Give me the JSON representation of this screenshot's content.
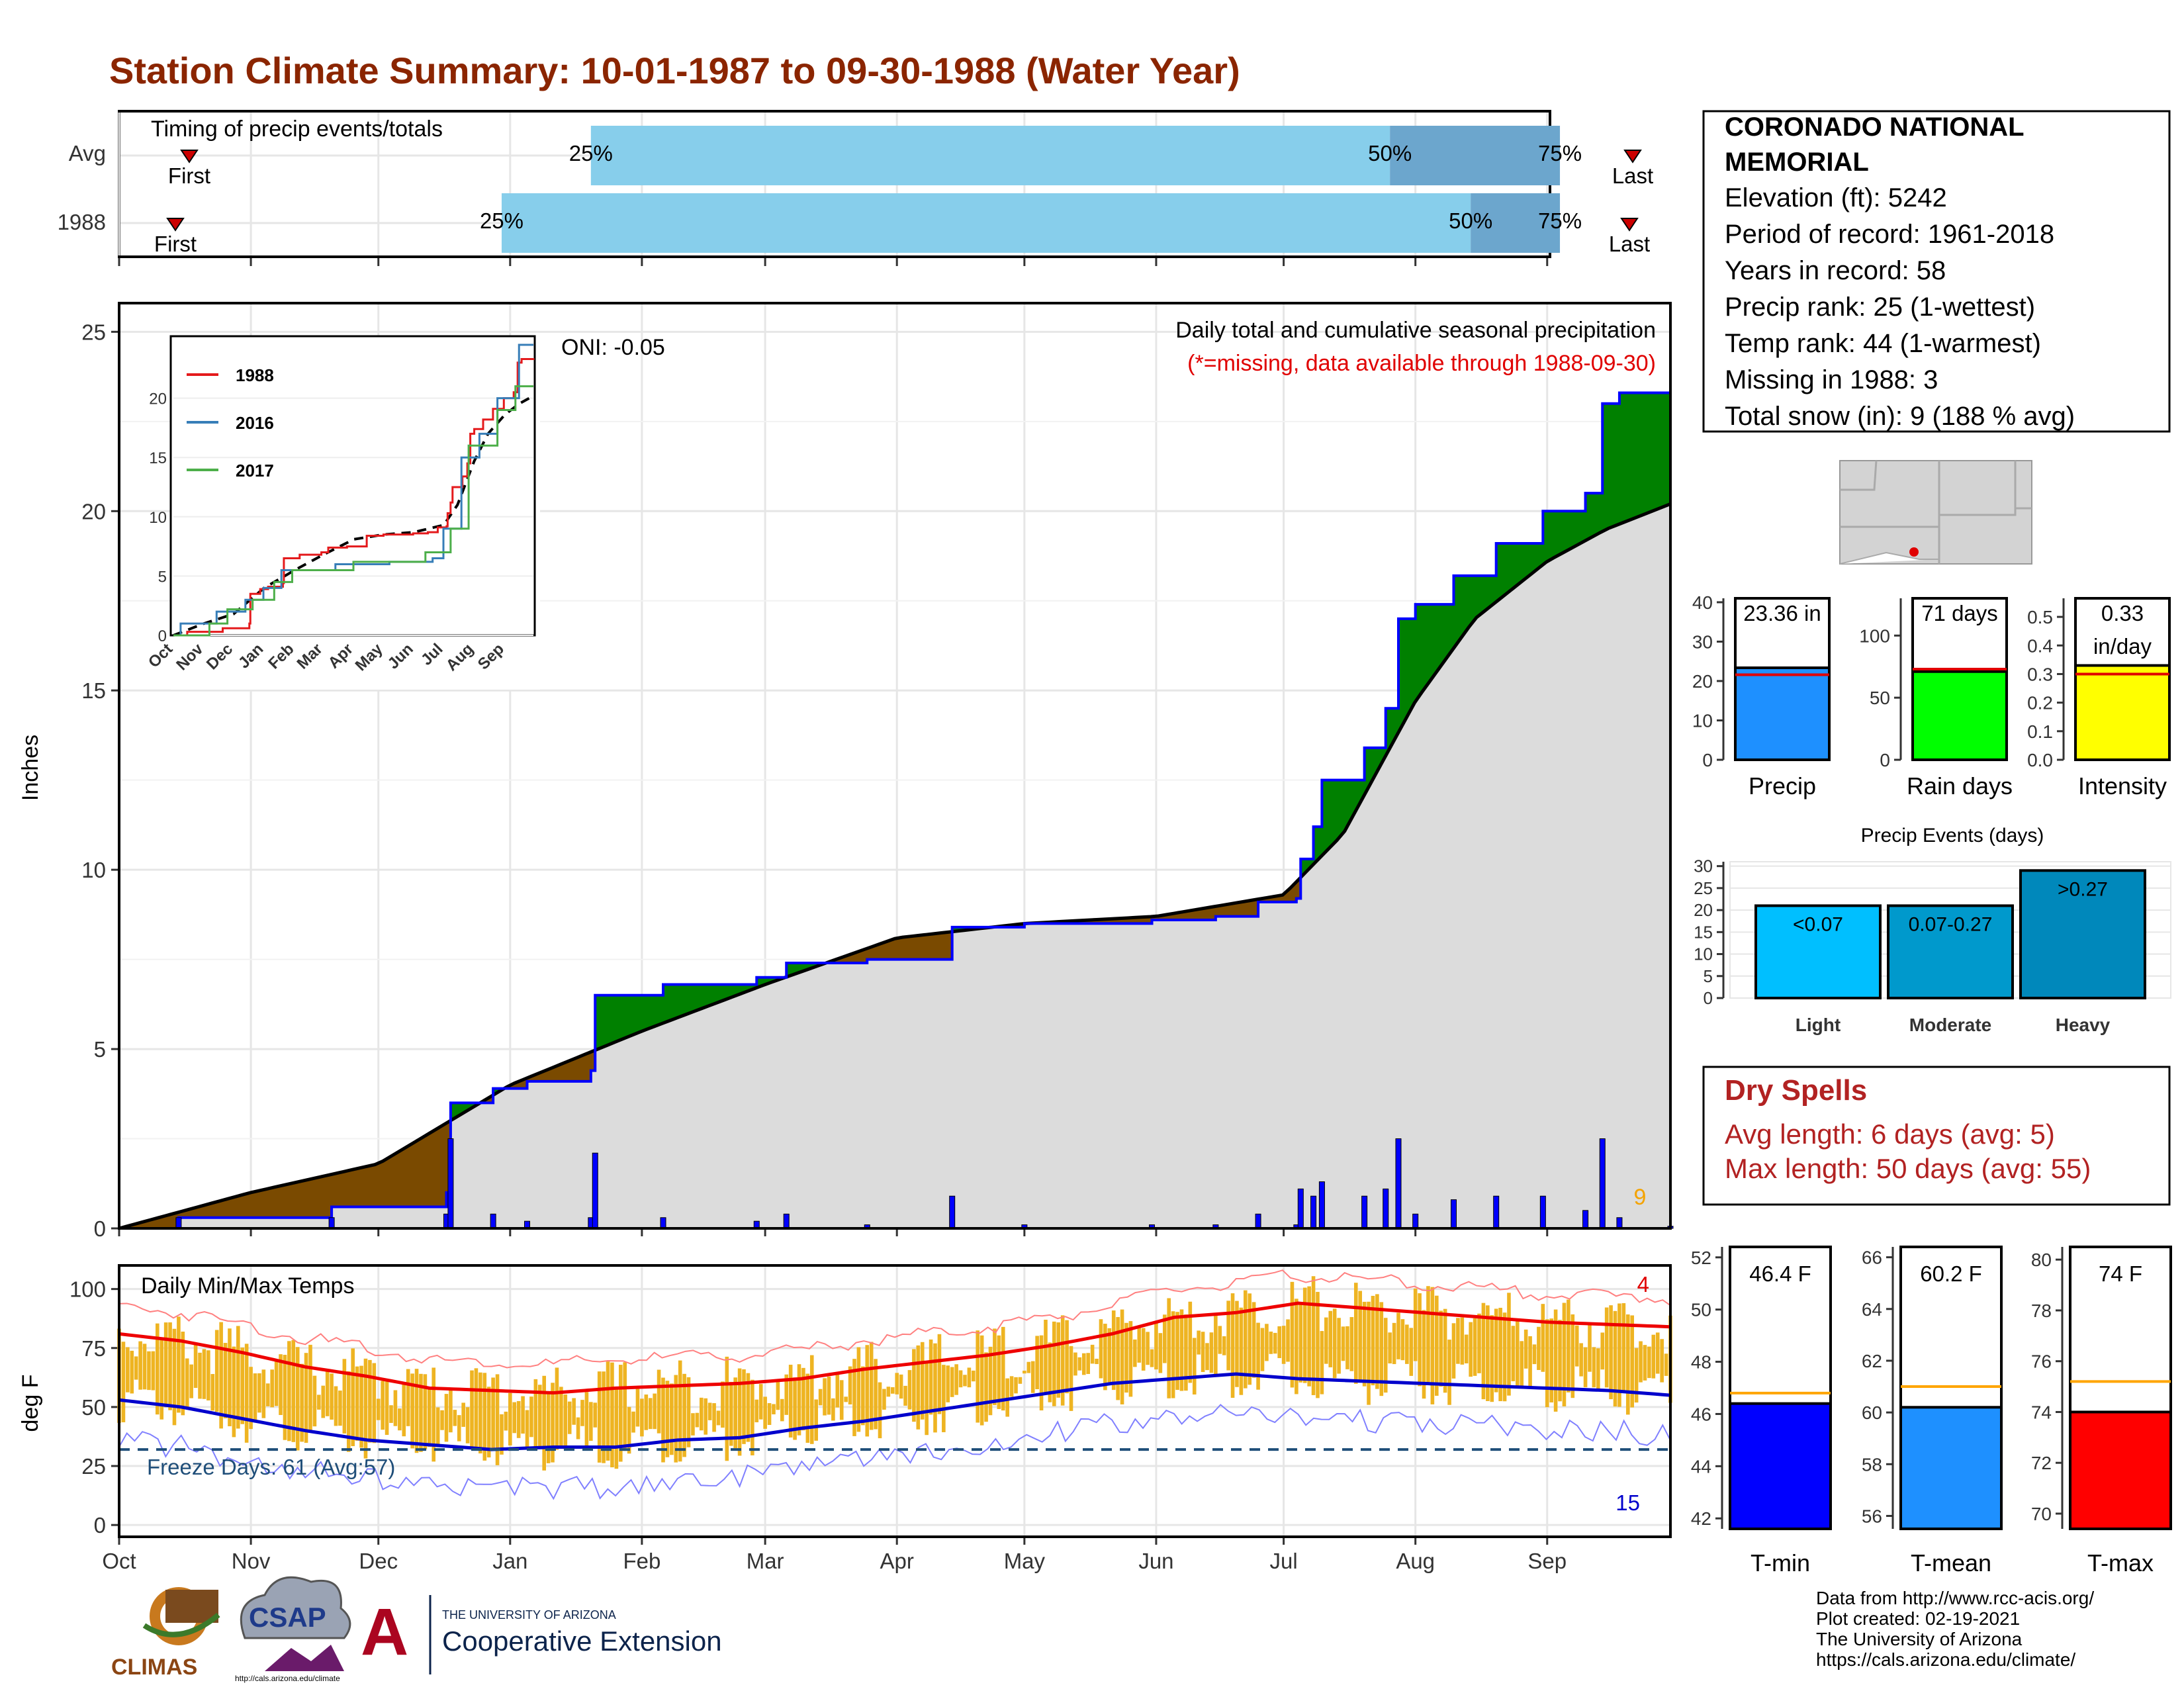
{
  "title": "Station Climate Summary: 10-01-1987 to 09-30-1988 (Water Year)",
  "station": {
    "name_line1": "CORONADO NATIONAL",
    "name_line2": "MEMORIAL",
    "lines": [
      "Elevation (ft): 5242",
      "Period of record: 1961-2018",
      "Years in record: 58",
      "Precip rank: 25 (1-wettest)",
      "Temp rank: 44 (1-warmest)",
      "Missing in 1988: 3",
      "Total snow (in): 9 (188 % avg)"
    ]
  },
  "months": [
    "Oct",
    "Nov",
    "Dec",
    "Jan",
    "Feb",
    "Mar",
    "Apr",
    "May",
    "Jun",
    "Jul",
    "Aug",
    "Sep"
  ],
  "timing": {
    "label": "Timing of precip events/totals",
    "rows": [
      "Avg",
      "1988"
    ],
    "first_label": "First",
    "last_label": "Last",
    "pct_labels": [
      "25%",
      "50%",
      "75%"
    ]
  },
  "precip_panel": {
    "ylabel": "Inches",
    "oni": "ONI: -0.05",
    "note1": "Daily total and cumulative seasonal precipitation",
    "note2": "(*=missing, data available through 1988-09-30)",
    "snow_label": "9",
    "inset_legend": [
      "1988",
      "2016",
      "2017"
    ]
  },
  "temp_panel": {
    "ylabel": "deg F",
    "label": "Daily Min/Max Temps",
    "freeze_label": "Freeze Days: 61 (Avg:57)",
    "hot_count": "4",
    "cold_count": "15"
  },
  "summary_bars": {
    "precip": {
      "label": "Precip",
      "value_text": "23.36 in"
    },
    "raindays": {
      "label": "Rain days",
      "value_text": "71 days"
    },
    "intensity": {
      "label": "Intensity",
      "value_text_1": "0.33",
      "value_text_2": "in/day"
    }
  },
  "events": {
    "title": "Precip Events (days)",
    "categories": [
      "Light",
      "Moderate",
      "Heavy"
    ],
    "labels": [
      "<0.07",
      "0.07-0.27",
      ">0.27"
    ]
  },
  "dry_spells": {
    "title": "Dry Spells",
    "avg": "Avg length: 6 days (avg: 5)",
    "max": "Max length: 50 days (avg: 55)"
  },
  "temp_bars": {
    "tmin": {
      "label": "T-min",
      "value_text": "46.4 F"
    },
    "tmean": {
      "label": "T-mean",
      "value_text": "60.2 F"
    },
    "tmax": {
      "label": "T-max",
      "value_text": "74 F"
    }
  },
  "credits": [
    "Data from http://www.rcc-acis.org/",
    "Plot created: 02-19-2021",
    "The University of Arizona",
    "https://cals.arizona.edu/climate/"
  ],
  "logos": {
    "climas": "CLIMAS",
    "csap": "CSAP",
    "csap_url": "http://cals.arizona.edu/climate",
    "ua_small": "THE UNIVERSITY OF ARIZONA",
    "ua_big": "Cooperative Extension"
  },
  "colors": {
    "title": "#8b2500",
    "obs_cum": "#0000ff",
    "above_avg": "#008000",
    "below_avg": "#7a4a00",
    "avg_fill": "#dcdcdc",
    "tmax_line": "#ee0000",
    "tmin_line": "#0000cc",
    "range_bar": "#eeb422"
  },
  "chart_data": [
    {
      "type": "bar",
      "title": "Timing of precip events/totals",
      "series": [
        {
          "name": "Avg",
          "values": {
            "p25": "Jan 20",
            "p50": "Jul 26",
            "p75": "Sep 4"
          }
        },
        {
          "name": "1988",
          "values": {
            "p25": "Dec 30",
            "p50": "Aug 14",
            "p75": "Sep 4"
          }
        }
      ]
    },
    {
      "type": "area",
      "title": "Daily total and cumulative seasonal precipitation",
      "ylabel": "Inches",
      "ylim": [
        0,
        25
      ],
      "x_range": [
        "1987-10-01",
        "1988-09-30"
      ],
      "cumulative_observed": [
        [
          "1987-10-01",
          0
        ],
        [
          "1987-10-15",
          0.3
        ],
        [
          "1987-11-01",
          0.3
        ],
        [
          "1987-11-20",
          0.6
        ],
        [
          "1987-12-10",
          0.6
        ],
        [
          "1987-12-17",
          1.0
        ],
        [
          "1987-12-18",
          3.5
        ],
        [
          "1987-12-28",
          3.9
        ],
        [
          "1988-01-05",
          4.1
        ],
        [
          "1988-01-20",
          4.4
        ],
        [
          "1988-01-21",
          6.5
        ],
        [
          "1988-02-01",
          6.5
        ],
        [
          "1988-02-06",
          6.8
        ],
        [
          "1988-02-15",
          6.8
        ],
        [
          "1988-02-28",
          7.0
        ],
        [
          "1988-03-06",
          7.4
        ],
        [
          "1988-03-25",
          7.5
        ],
        [
          "1988-04-13",
          7.5
        ],
        [
          "1988-04-14",
          8.4
        ],
        [
          "1988-04-30",
          8.4
        ],
        [
          "1988-05-01",
          8.5
        ],
        [
          "1988-05-31",
          8.6
        ],
        [
          "1988-06-15",
          8.7
        ],
        [
          "1988-06-25",
          9.1
        ],
        [
          "1988-07-04",
          9.2
        ],
        [
          "1988-07-05",
          10.3
        ],
        [
          "1988-07-08",
          11.2
        ],
        [
          "1988-07-10",
          12.5
        ],
        [
          "1988-07-20",
          13.4
        ],
        [
          "1988-07-25",
          14.5
        ],
        [
          "1988-07-28",
          17.0
        ],
        [
          "1988-08-01",
          17.4
        ],
        [
          "1988-08-10",
          18.2
        ],
        [
          "1988-08-20",
          19.1
        ],
        [
          "1988-08-31",
          20.0
        ],
        [
          "1988-09-10",
          20.5
        ],
        [
          "1988-09-14",
          23.0
        ],
        [
          "1988-09-18",
          23.3
        ],
        [
          "1988-09-30",
          23.36
        ]
      ],
      "cumulative_average": [
        [
          "1987-10-01",
          0
        ],
        [
          "1987-11-01",
          1.0
        ],
        [
          "1987-12-01",
          1.8
        ],
        [
          "1988-01-01",
          4.0
        ],
        [
          "1988-02-01",
          5.5
        ],
        [
          "1988-03-01",
          6.8
        ],
        [
          "1988-04-01",
          8.1
        ],
        [
          "1988-05-01",
          8.5
        ],
        [
          "1988-06-01",
          8.7
        ],
        [
          "1988-07-01",
          9.3
        ],
        [
          "1988-07-15",
          11.0
        ],
        [
          "1988-08-01",
          14.7
        ],
        [
          "1988-08-15",
          17.0
        ],
        [
          "1988-09-01",
          18.6
        ],
        [
          "1988-09-15",
          19.5
        ],
        [
          "1988-09-30",
          20.2
        ]
      ]
    },
    {
      "type": "line",
      "title": "Daily Min/Max Temps",
      "ylabel": "deg F",
      "ylim": [
        -5,
        110
      ],
      "series": [
        {
          "values": [
            81,
            78,
            73,
            67,
            63,
            58,
            57,
            56,
            58,
            59,
            60,
            62,
            66,
            69,
            72,
            76,
            81,
            88,
            90,
            94,
            92,
            90,
            88,
            86,
            85,
            84
          ]
        },
        {
          "values": [
            53,
            50,
            45,
            40,
            36,
            34,
            32,
            33,
            33,
            36,
            37,
            41,
            44,
            48,
            52,
            56,
            60,
            62,
            64,
            62,
            61,
            60,
            59,
            58,
            57,
            55
          ]
        }
      ]
    },
    {
      "type": "bar",
      "title": "Precip Events (days)",
      "categories": [
        "Light",
        "Moderate",
        "Heavy"
      ],
      "values": [
        21,
        21,
        29
      ]
    }
  ]
}
